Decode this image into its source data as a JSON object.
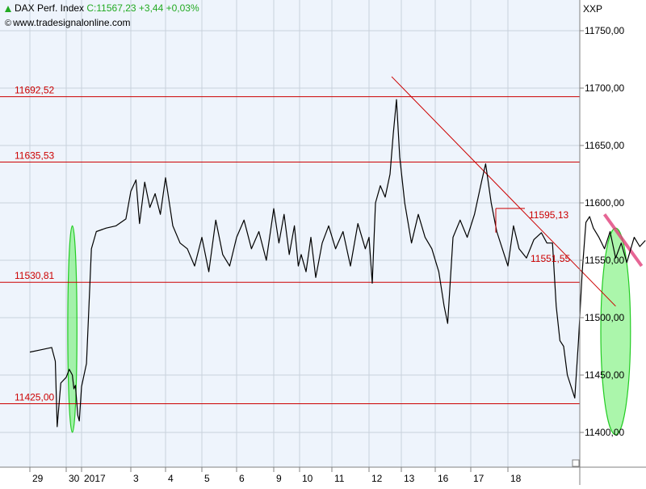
{
  "header": {
    "instrument": "DAX Perf. Index",
    "quote": "C:11567,23 +3,44 +0,03%",
    "source": "www.tradesignalonline.com",
    "unit": "XXP",
    "up_icon": "up-triangle-icon",
    "copyright_icon": "copyright-icon"
  },
  "colors": {
    "background": "#EEF4FC",
    "price": "#000000",
    "level": "#CC0000",
    "trend": "#CC0000",
    "highlight": "#22CC22",
    "highlight_fill": "#66EE66",
    "grid": "#C8D2DC"
  },
  "chart_data": {
    "type": "line",
    "title": "DAX Perf. Index",
    "xlabel": "",
    "ylabel": "",
    "ylim": [
      11365,
      11775
    ],
    "y_ticks": [
      11400,
      11450,
      11500,
      11550,
      11600,
      11650,
      11700,
      11750
    ],
    "y_tick_labels": [
      "11400,00",
      "11450,00",
      "11500,00",
      "11550,00",
      "11600,00",
      "11650,00",
      "11700,00",
      "11750,00"
    ],
    "x_ticks": [
      "29",
      "30",
      "2017",
      "3",
      "4",
      "5",
      "6",
      "9",
      "10",
      "11",
      "12",
      "13",
      "16",
      "17",
      "18"
    ],
    "grid": true,
    "horizontal_levels": [
      {
        "value": 11692.52,
        "label": "11692,52"
      },
      {
        "value": 11635.53,
        "label": "11635,53"
      },
      {
        "value": 11530.81,
        "label": "11530,81"
      },
      {
        "value": 11425.0,
        "label": "11425,00"
      }
    ],
    "right_annotations": [
      {
        "value": 11595.13,
        "label": "11595,13"
      },
      {
        "value": 11551.55,
        "label": "11551,55"
      }
    ],
    "trendline": {
      "x": [
        10.7,
        16.9
      ],
      "y": [
        11710,
        11510
      ]
    },
    "marker_band": {
      "x": [
        16.6,
        17.6
      ],
      "y": [
        11590,
        11545
      ]
    },
    "highlight_ellipses": [
      {
        "x_center": 1.4,
        "y_center": 11490,
        "x_halfwidth": 0.3,
        "y_halfwidth": 90
      },
      {
        "x_center": 16.9,
        "y_center": 11488,
        "x_halfwidth": 0.4,
        "y_halfwidth": 90
      }
    ],
    "series": [
      {
        "values": [
          [
            0.0,
            11470
          ],
          [
            0.3,
            11472
          ],
          [
            0.6,
            11474
          ],
          [
            0.7,
            11462
          ],
          [
            0.75,
            11405
          ],
          [
            0.85,
            11443
          ],
          [
            1.0,
            11448
          ],
          [
            1.2,
            11455
          ],
          [
            1.4,
            11450
          ],
          [
            1.5,
            11438
          ],
          [
            1.6,
            11441
          ],
          [
            1.75,
            11415
          ],
          [
            1.85,
            11410
          ],
          [
            2.0,
            11440
          ],
          [
            2.1,
            11460
          ],
          [
            2.2,
            11560
          ],
          [
            2.3,
            11575
          ],
          [
            2.5,
            11578
          ],
          [
            2.7,
            11580
          ],
          [
            2.9,
            11586
          ],
          [
            3.0,
            11610
          ],
          [
            3.15,
            11620
          ],
          [
            3.25,
            11582
          ],
          [
            3.4,
            11618
          ],
          [
            3.55,
            11596
          ],
          [
            3.7,
            11608
          ],
          [
            3.85,
            11590
          ],
          [
            4.0,
            11622
          ],
          [
            4.2,
            11580
          ],
          [
            4.4,
            11565
          ],
          [
            4.6,
            11560
          ],
          [
            4.8,
            11545
          ],
          [
            5.0,
            11570
          ],
          [
            5.2,
            11540
          ],
          [
            5.4,
            11585
          ],
          [
            5.6,
            11555
          ],
          [
            5.8,
            11545
          ],
          [
            6.0,
            11570
          ],
          [
            6.2,
            11585
          ],
          [
            6.4,
            11560
          ],
          [
            6.6,
            11575
          ],
          [
            6.8,
            11550
          ],
          [
            7.0,
            11595
          ],
          [
            7.2,
            11565
          ],
          [
            7.4,
            11590
          ],
          [
            7.6,
            11555
          ],
          [
            7.8,
            11580
          ],
          [
            7.95,
            11545
          ],
          [
            8.05,
            11555
          ],
          [
            8.2,
            11540
          ],
          [
            8.35,
            11570
          ],
          [
            8.5,
            11535
          ],
          [
            8.7,
            11565
          ],
          [
            8.9,
            11580
          ],
          [
            9.1,
            11560
          ],
          [
            9.3,
            11575
          ],
          [
            9.5,
            11545
          ],
          [
            9.7,
            11582
          ],
          [
            9.9,
            11560
          ],
          [
            10.0,
            11570
          ],
          [
            10.1,
            11530
          ],
          [
            10.2,
            11600
          ],
          [
            10.35,
            11615
          ],
          [
            10.5,
            11605
          ],
          [
            10.65,
            11625
          ],
          [
            10.75,
            11660
          ],
          [
            10.85,
            11690
          ],
          [
            10.95,
            11640
          ],
          [
            11.1,
            11600
          ],
          [
            11.3,
            11565
          ],
          [
            11.5,
            11590
          ],
          [
            11.7,
            11570
          ],
          [
            11.9,
            11560
          ],
          [
            12.1,
            11540
          ],
          [
            12.25,
            11510
          ],
          [
            12.35,
            11495
          ],
          [
            12.5,
            11570
          ],
          [
            12.7,
            11585
          ],
          [
            12.9,
            11570
          ],
          [
            13.1,
            11590
          ],
          [
            13.3,
            11620
          ],
          [
            13.4,
            11634
          ],
          [
            13.55,
            11600
          ],
          [
            13.7,
            11575
          ],
          [
            13.85,
            11560
          ],
          [
            14.0,
            11545
          ],
          [
            14.15,
            11580
          ],
          [
            14.3,
            11560
          ],
          [
            14.5,
            11552
          ],
          [
            14.7,
            11568
          ],
          [
            14.9,
            11574
          ],
          [
            15.05,
            11565
          ],
          [
            15.2,
            11565
          ],
          [
            15.3,
            11510
          ],
          [
            15.4,
            11480
          ],
          [
            15.5,
            11475
          ],
          [
            15.6,
            11450
          ],
          [
            15.7,
            11440
          ],
          [
            15.8,
            11430
          ],
          [
            15.9,
            11480
          ],
          [
            16.0,
            11540
          ],
          [
            16.1,
            11583
          ],
          [
            16.2,
            11588
          ],
          [
            16.3,
            11578
          ],
          [
            16.45,
            11570
          ],
          [
            16.6,
            11560
          ],
          [
            16.75,
            11575
          ],
          [
            16.9,
            11552
          ],
          [
            17.05,
            11565
          ],
          [
            17.2,
            11548
          ],
          [
            17.4,
            11570
          ],
          [
            17.55,
            11562
          ],
          [
            17.7,
            11567.23
          ]
        ]
      }
    ]
  }
}
